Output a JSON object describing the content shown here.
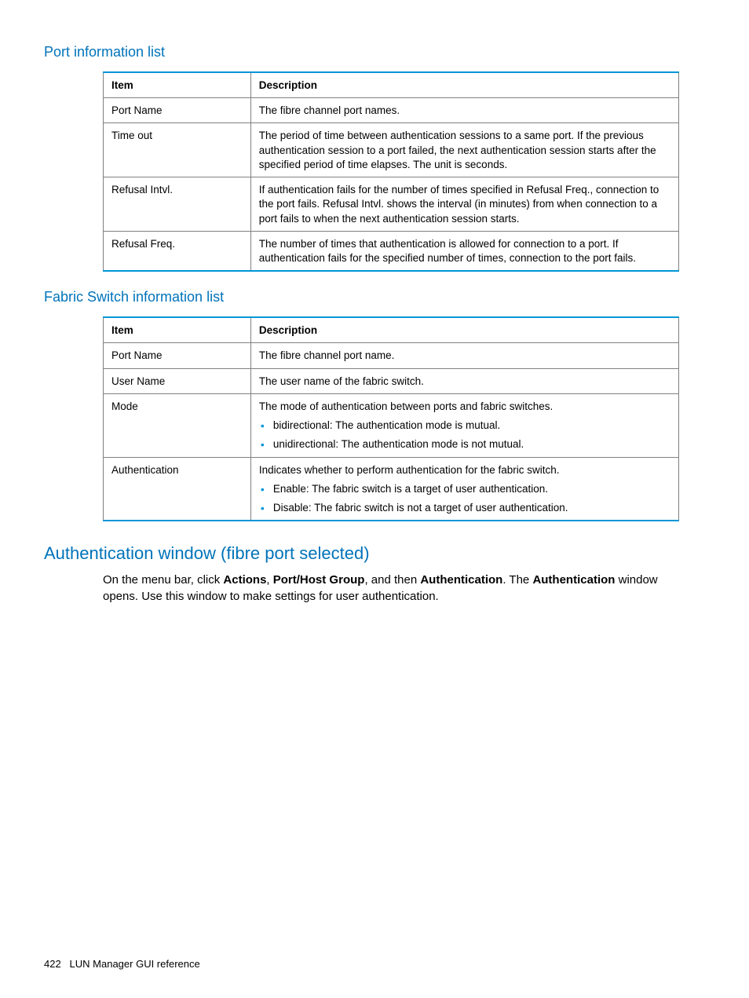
{
  "colors": {
    "heading_blue": "#0073ba",
    "border_blue": "#0096d6",
    "grid_gray": "#808080",
    "text_black": "#000000",
    "bullet_blue": "#0096d6",
    "background": "#ffffff"
  },
  "section1": {
    "title": "Port information list",
    "columns": [
      "Item",
      "Description"
    ],
    "rows": [
      {
        "item": "Port Name",
        "desc": "The fibre channel port names."
      },
      {
        "item": "Time out",
        "desc": "The period of time between authentication sessions to a same port. If the previous authentication session to a port failed, the next authentication session starts after the specified period of time elapses. The unit is seconds."
      },
      {
        "item": "Refusal Intvl.",
        "desc": "If authentication fails for the number of times specified in Refusal Freq., connection to the port fails. Refusal Intvl. shows the interval (in minutes) from when connection to a port fails to when the next authentication session starts."
      },
      {
        "item": "Refusal Freq.",
        "desc": "The number of times that authentication is allowed for connection to a port. If authentication fails for the specified number of times, connection to the port fails."
      }
    ]
  },
  "section2": {
    "title": "Fabric Switch information list",
    "columns": [
      "Item",
      "Description"
    ],
    "rows": [
      {
        "item": "Port Name",
        "desc": "The fibre channel port name."
      },
      {
        "item": "User Name",
        "desc": "The user name of the fabric switch."
      },
      {
        "item": "Mode",
        "desc_intro": "The mode of authentication between ports and fabric switches.",
        "bullets": [
          "bidirectional: The authentication mode is mutual.",
          "unidirectional: The authentication mode is not mutual."
        ]
      },
      {
        "item": "Authentication",
        "desc_intro": "Indicates whether to perform authentication for the fabric switch.",
        "bullets": [
          "Enable: The fabric switch is a target of user authentication.",
          "Disable: The fabric switch is not a target of user authentication."
        ]
      }
    ]
  },
  "section3": {
    "title": "Authentication window (fibre port selected)",
    "para": {
      "t1": "On the menu bar, click ",
      "b1": "Actions",
      "t2": ", ",
      "b2": "Port/Host Group",
      "t3": ", and then ",
      "b3": "Authentication",
      "t4": ". The ",
      "b4": "Authentication",
      "t5": " window opens. Use this window to make settings for user authentication."
    }
  },
  "footer": {
    "page_number": "422",
    "label": "LUN Manager GUI reference"
  }
}
